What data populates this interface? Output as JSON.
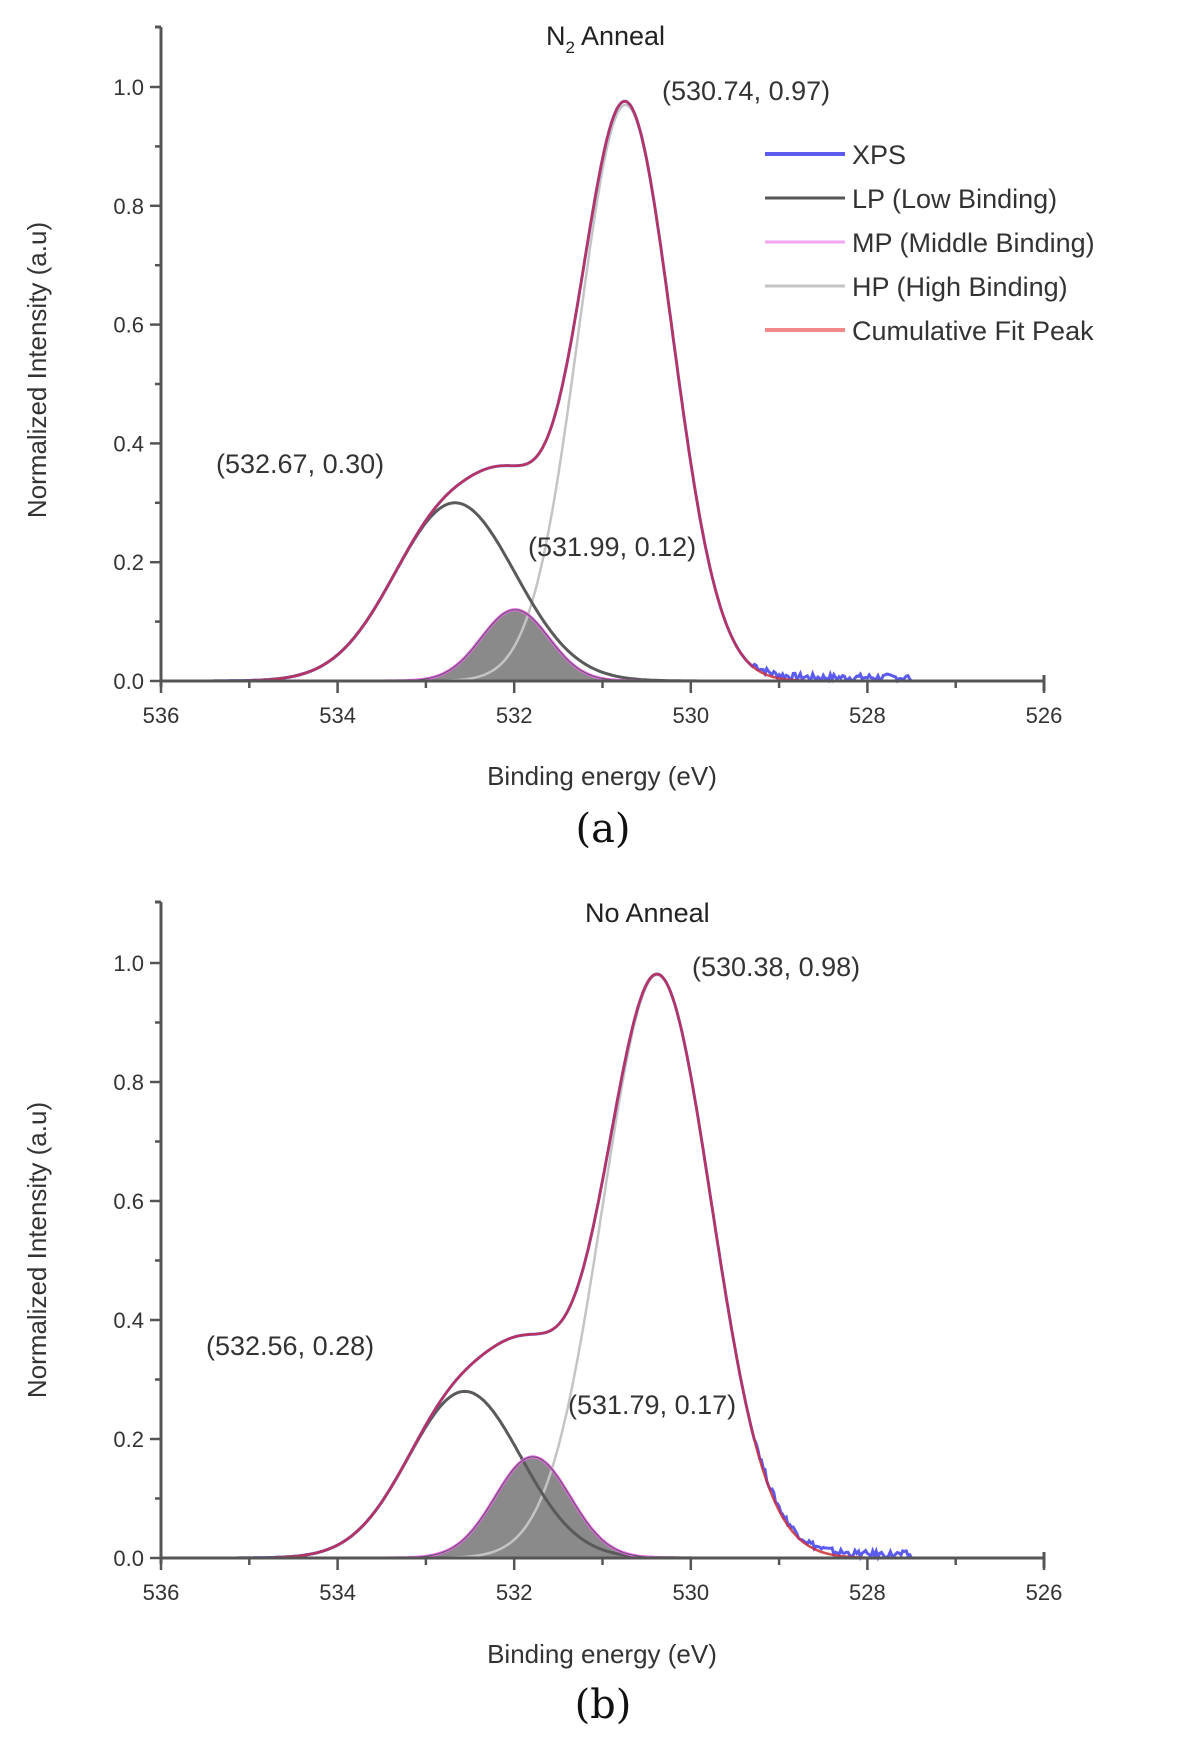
{
  "chart_data": [
    {
      "type": "line",
      "title": "N₂ Anneal",
      "title_main": "N",
      "title_sub": "2",
      "title_rest": " Anneal",
      "caption": "(a)",
      "xlabel": "Binding energy (eV)",
      "ylabel": "Normalized Intensity (a.u)",
      "xlim": [
        536,
        526
      ],
      "ylim": [
        0,
        1.1
      ],
      "xticks": [
        "536",
        "534",
        "532",
        "530",
        "528",
        "526"
      ],
      "xtick_values": [
        536,
        534,
        532,
        530,
        528,
        526
      ],
      "yticks": [
        "0.0",
        "0.2",
        "0.4",
        "0.6",
        "0.8",
        "1.0"
      ],
      "ytick_values": [
        0,
        0.2,
        0.4,
        0.6,
        0.8,
        1.0
      ],
      "legend": {
        "position": "top-right",
        "entries": [
          {
            "label": "XPS",
            "color": "#5b5bf0"
          },
          {
            "label": "LP (Low Binding)",
            "color": "#555555"
          },
          {
            "label": "MP (Middle Binding)",
            "color": "#ee66ee"
          },
          {
            "label": "HP (High Binding)",
            "color": "#bbbbbb"
          },
          {
            "label": "Cumulative Fit Peak",
            "color": "#ee5555"
          }
        ]
      },
      "peaks": [
        {
          "name": "LP (Low Binding)",
          "center": 532.67,
          "amplitude": 0.3,
          "fwhm": 1.6,
          "color": "#555555"
        },
        {
          "name": "MP (Middle Binding)",
          "center": 531.99,
          "amplitude": 0.12,
          "fwhm": 0.9,
          "color": "#ee66ee"
        },
        {
          "name": "HP (High Binding)",
          "center": 530.74,
          "amplitude": 0.97,
          "fwhm": 1.25,
          "color": "#bbbbbb"
        }
      ],
      "annotations": [
        {
          "text": "(530.74, 0.97)",
          "x": 530.74,
          "y": 0.97
        },
        {
          "text": "(532.67, 0.30)",
          "x": 532.67,
          "y": 0.3
        },
        {
          "text": "(531.99, 0.12)",
          "x": 531.99,
          "y": 0.12
        }
      ]
    },
    {
      "type": "line",
      "title": "No Anneal",
      "caption": "(b)",
      "xlabel": "Binding energy (eV)",
      "ylabel": "Normalized Intensity (a.u)",
      "xlim": [
        536,
        526
      ],
      "ylim": [
        0,
        1.1
      ],
      "xticks": [
        "536",
        "534",
        "532",
        "530",
        "528",
        "526"
      ],
      "xtick_values": [
        536,
        534,
        532,
        530,
        528,
        526
      ],
      "yticks": [
        "0.0",
        "0.2",
        "0.4",
        "0.6",
        "0.8",
        "1.0"
      ],
      "ytick_values": [
        0,
        0.2,
        0.4,
        0.6,
        0.8,
        1.0
      ],
      "peaks": [
        {
          "name": "LP (Low Binding)",
          "center": 532.56,
          "amplitude": 0.28,
          "fwhm": 1.5,
          "color": "#555555"
        },
        {
          "name": "MP (Middle Binding)",
          "center": 531.79,
          "amplitude": 0.17,
          "fwhm": 1.0,
          "color": "#ee66ee"
        },
        {
          "name": "HP (High Binding)",
          "center": 530.38,
          "amplitude": 0.98,
          "fwhm": 1.45,
          "color": "#bbbbbb"
        }
      ],
      "annotations": [
        {
          "text": "(530.38, 0.98)",
          "x": 530.38,
          "y": 0.98
        },
        {
          "text": "(532.56, 0.28)",
          "x": 532.56,
          "y": 0.28
        },
        {
          "text": "(531.79, 0.17)",
          "x": 531.79,
          "y": 0.17
        }
      ]
    }
  ]
}
